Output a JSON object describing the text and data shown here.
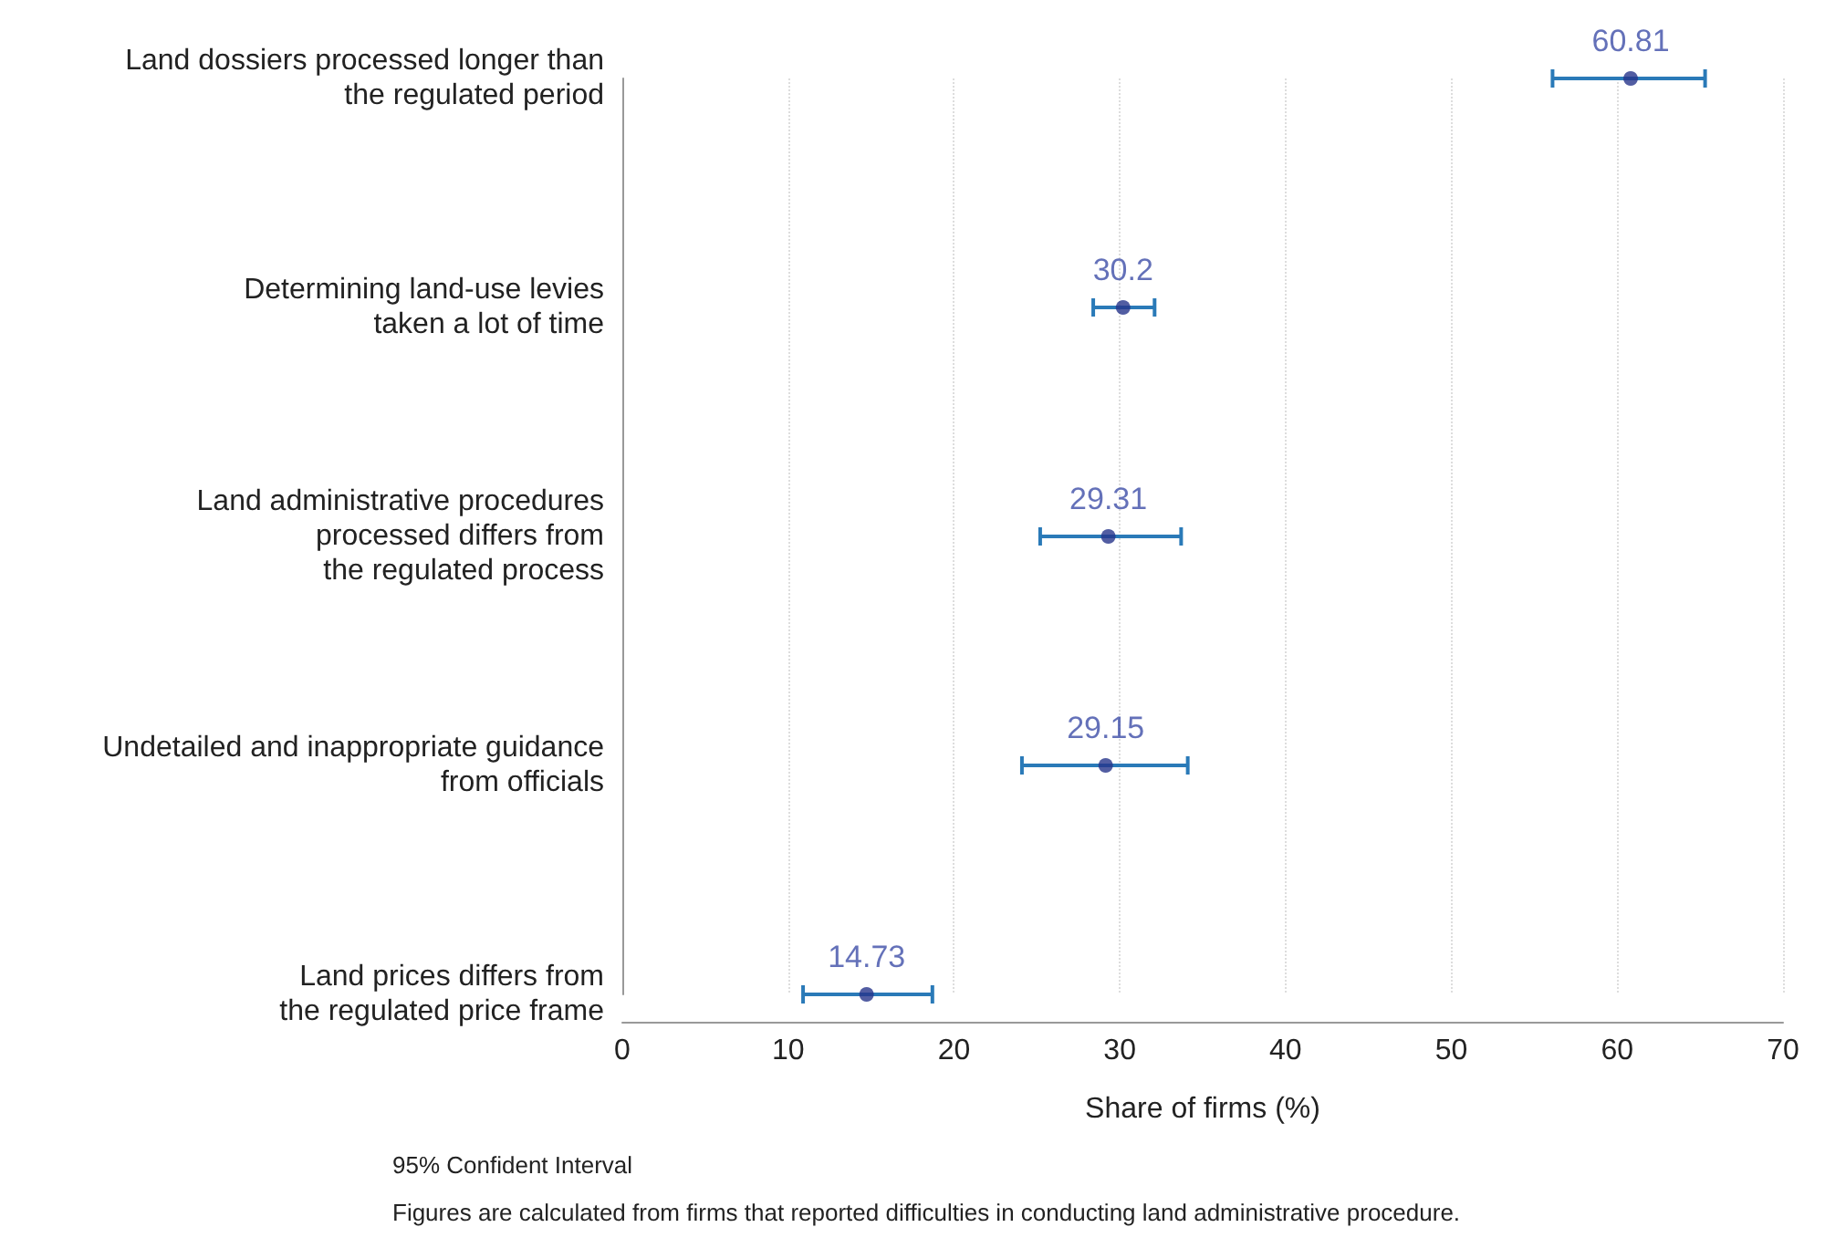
{
  "chart_data": {
    "type": "scatter",
    "orientation": "horizontal",
    "categories": [
      "Land dossiers processed longer than\nthe regulated period",
      "Determining land-use levies\ntaken a lot of time",
      "Land administrative procedures\nprocessed differs from\nthe regulated process",
      "Undetailed and inappropriate guidance\nfrom officials",
      "Land prices differs from\nthe regulated price frame"
    ],
    "series": [
      {
        "color": "#27348b",
        "values": [
          60.81,
          30.2,
          29.31,
          29.15,
          14.73
        ],
        "errors": [
          [
            56.1,
            65.3
          ],
          [
            28.4,
            32.1
          ],
          [
            25.2,
            33.7
          ],
          [
            24.1,
            34.1
          ],
          [
            10.9,
            18.7
          ]
        ]
      }
    ],
    "data_labels": true,
    "xlim": [
      0,
      70
    ],
    "xticks": [
      0,
      10,
      20,
      30,
      40,
      50,
      60,
      70
    ],
    "xlabel": "Share of firms (%)",
    "grid": "x",
    "marker": "circle",
    "annotations": [
      "95% Confident Interval",
      "Figures are calculated from firms that reported difficulties in conducting land administrative procedure."
    ]
  }
}
